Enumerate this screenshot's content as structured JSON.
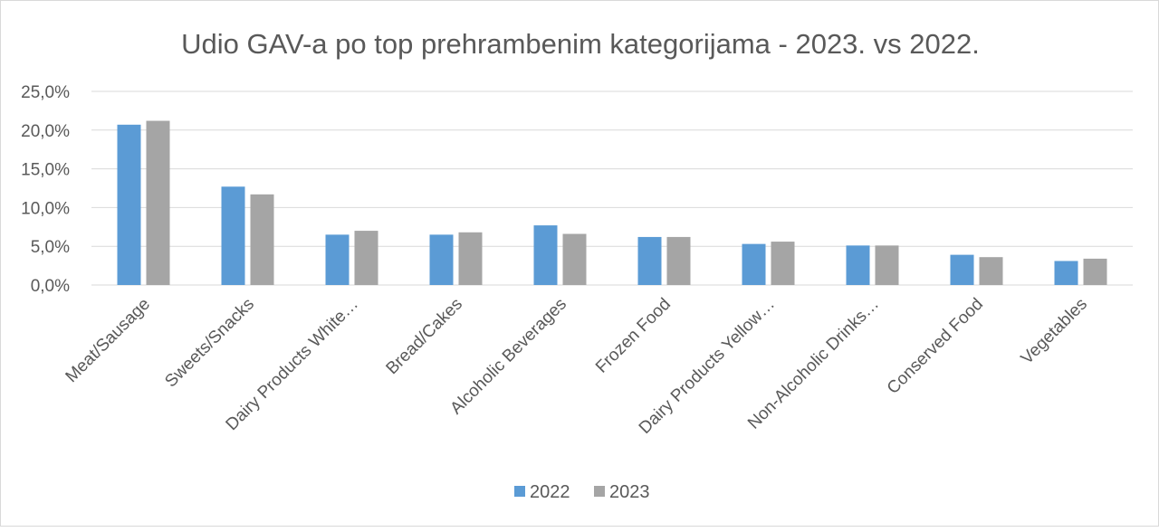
{
  "chart_data": {
    "type": "bar",
    "title": "Udio GAV-a po top prehrambenim kategorijama - 2023. vs 2022.",
    "categories": [
      "Meat/Sausage",
      "Sweets/Snacks",
      "Dairy Products White…",
      "Bread/Cakes",
      "Alcoholic Beverages",
      "Frozen Food",
      "Dairy Products Yellow…",
      "Non-Alcoholic Drinks…",
      "Conserved Food",
      "Vegetables"
    ],
    "series": [
      {
        "name": "2022",
        "color": "#5b9bd5",
        "values": [
          20.7,
          12.7,
          6.5,
          6.5,
          7.7,
          6.2,
          5.3,
          5.1,
          3.9,
          3.1
        ]
      },
      {
        "name": "2023",
        "color": "#a5a5a5",
        "values": [
          21.2,
          11.7,
          7.0,
          6.8,
          6.6,
          6.2,
          5.6,
          5.1,
          3.6,
          3.4
        ]
      }
    ],
    "ylim": [
      0,
      25
    ],
    "yticks": [
      "0,0%",
      "5,0%",
      "10,0%",
      "15,0%",
      "20,0%",
      "25,0%"
    ],
    "grid": true,
    "legend_position": "bottom"
  }
}
